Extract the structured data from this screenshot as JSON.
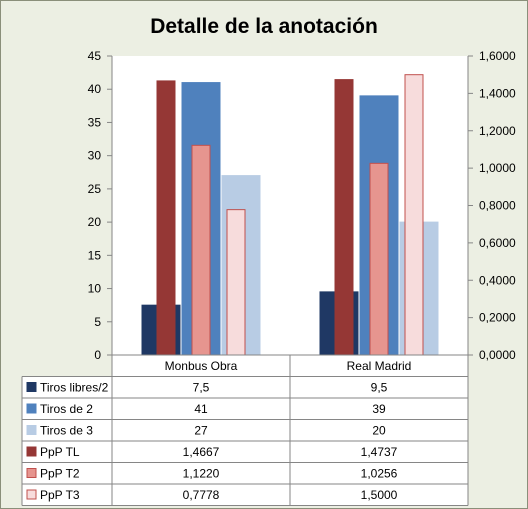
{
  "chart_data": {
    "type": "bar",
    "title": "Detalle de la anotación",
    "categories": [
      "Monbus Obra",
      "Real Madrid"
    ],
    "left_axis": {
      "min": 0,
      "max": 45,
      "step": 5,
      "ticks": [
        "0",
        "5",
        "10",
        "15",
        "20",
        "25",
        "30",
        "35",
        "40",
        "45"
      ]
    },
    "right_axis": {
      "min": 0,
      "max": 1.6,
      "step": 0.2,
      "ticks": [
        "0,0000",
        "0,2000",
        "0,4000",
        "0,6000",
        "0,8000",
        "1,0000",
        "1,2000",
        "1,4000",
        "1,6000"
      ]
    },
    "series": [
      {
        "name": "Tiros libres/2",
        "axis": "left",
        "values": [
          7.5,
          9.5
        ],
        "labels": [
          "7,5",
          "9,5"
        ],
        "color": "#1f3864",
        "stroke": "#1f3864"
      },
      {
        "name": "Tiros de 2",
        "axis": "left",
        "values": [
          41,
          39
        ],
        "labels": [
          "41",
          "39"
        ],
        "color": "#4f81bd",
        "stroke": "#4f81bd"
      },
      {
        "name": "Tiros de 3",
        "axis": "left",
        "values": [
          27,
          20
        ],
        "labels": [
          "27",
          "20"
        ],
        "color": "#b8cce4",
        "stroke": "#b8cce4"
      },
      {
        "name": "PpP TL",
        "axis": "right",
        "values": [
          1.4667,
          1.4737
        ],
        "labels": [
          "1,4667",
          "1,4737"
        ],
        "color": "#953735",
        "stroke": "#953735"
      },
      {
        "name": "PpP T2",
        "axis": "right",
        "values": [
          1.122,
          1.0256
        ],
        "labels": [
          "1,1220",
          "1,0256"
        ],
        "color": "#e6958f",
        "stroke": "#c0504d"
      },
      {
        "name": "PpP T3",
        "axis": "right",
        "values": [
          0.7778,
          1.5
        ],
        "labels": [
          "0,7778",
          "1,5000"
        ],
        "color": "#f7dcdc",
        "stroke": "#c0504d"
      }
    ],
    "grid": false,
    "legend": "data-table"
  }
}
